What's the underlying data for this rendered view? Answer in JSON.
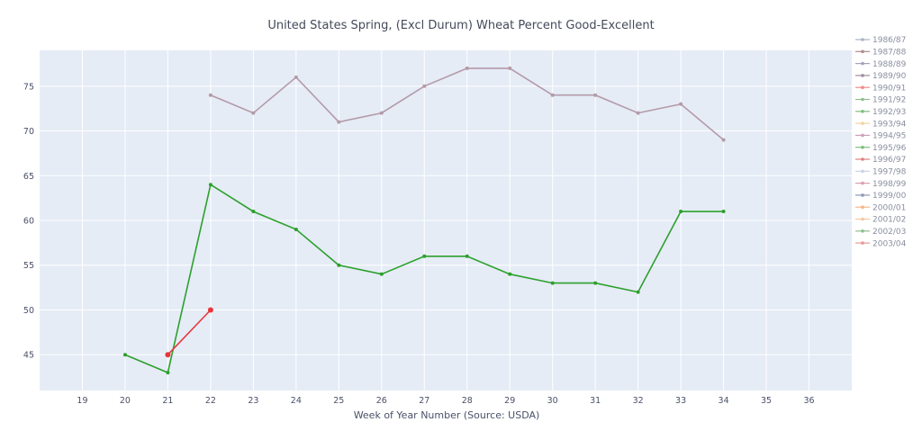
{
  "chart_data": {
    "type": "line",
    "title": "United States Spring, (Excl Durum) Wheat Percent Good-Excellent",
    "xlabel": "Week of Year Number    (Source: USDA)",
    "ylabel": "",
    "xlim": [
      18,
      37
    ],
    "ylim": [
      41,
      79
    ],
    "x_ticks": [
      19,
      20,
      21,
      22,
      23,
      24,
      25,
      26,
      27,
      28,
      29,
      30,
      31,
      32,
      33,
      34,
      35,
      36
    ],
    "y_ticks": [
      45,
      50,
      55,
      60,
      65,
      70,
      75
    ],
    "grid": true,
    "legend_position": "right",
    "series": [
      {
        "name": "1986/87",
        "color": "#a9b3c4",
        "x": [],
        "y": []
      },
      {
        "name": "1987/88",
        "color": "#b08a8a",
        "x": [],
        "y": []
      },
      {
        "name": "1988/89",
        "color": "#a8a0b8",
        "x": [],
        "y": []
      },
      {
        "name": "1989/90",
        "color": "#9c8c9c",
        "x": [],
        "y": []
      },
      {
        "name": "1990/91",
        "color": "#f08a8a",
        "x": [],
        "y": []
      },
      {
        "name": "1991/92",
        "color": "#8fbf8f",
        "x": [],
        "y": []
      },
      {
        "name": "1992/93",
        "color": "#7fbf7f",
        "x": [],
        "y": []
      },
      {
        "name": "1993/94",
        "color": "#f3d3a3",
        "x": [],
        "y": []
      },
      {
        "name": "1994/95",
        "color": "#c9a0b8",
        "x": [],
        "y": []
      },
      {
        "name": "1995/96",
        "color": "#7fbf7f",
        "x": [],
        "y": []
      },
      {
        "name": "1996/97",
        "color": "#e08080",
        "x": [],
        "y": []
      },
      {
        "name": "1997/98",
        "color": "#c8d4e8",
        "x": [],
        "y": []
      },
      {
        "name": "1998/99",
        "color": "#d9a0b0",
        "x": [],
        "y": []
      },
      {
        "name": "1999/00",
        "color": "#8c97b3",
        "x": [],
        "y": []
      },
      {
        "name": "2000/01",
        "color": "#f4b58a",
        "x": [],
        "y": []
      },
      {
        "name": "2001/02",
        "color": "#f4c8a0",
        "x": [],
        "y": []
      },
      {
        "name": "2002/03",
        "color": "#8fbf8f",
        "x": [],
        "y": []
      },
      {
        "name": "2003/04",
        "color": "#e89898",
        "x": [],
        "y": []
      },
      {
        "name": "",
        "color": "#b49aa8",
        "x": [
          22,
          23,
          24,
          25,
          26,
          27,
          28,
          29,
          30,
          31,
          32,
          33,
          34
        ],
        "y": [
          74,
          72,
          76,
          71,
          72,
          75,
          77,
          77,
          74,
          74,
          72,
          73,
          69
        ]
      },
      {
        "name": "",
        "color": "#2ca02c",
        "x": [
          20,
          21,
          22,
          23,
          24,
          25,
          26,
          27,
          28,
          29,
          30,
          31,
          32,
          33,
          34
        ],
        "y": [
          45,
          43,
          64,
          61,
          59,
          55,
          54,
          56,
          56,
          54,
          53,
          53,
          52,
          61,
          61
        ]
      },
      {
        "name": "",
        "color": "#e8363c",
        "x": [
          21,
          22
        ],
        "y": [
          45,
          50
        ]
      }
    ]
  }
}
